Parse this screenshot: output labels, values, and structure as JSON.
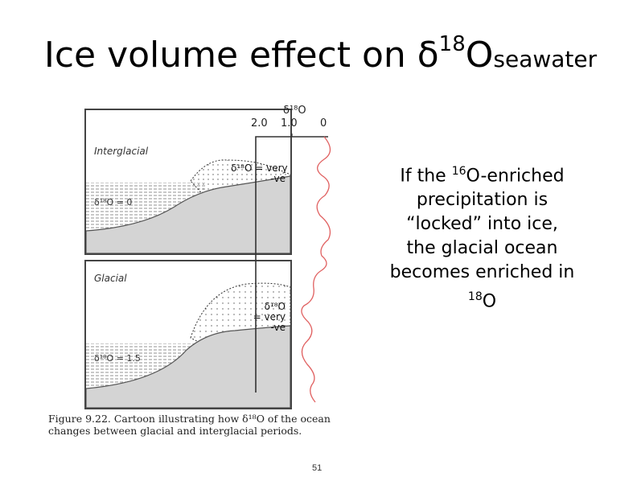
{
  "title": {
    "main": "Ice volume effect on δ",
    "sup": "18",
    "o": "O",
    "sub": "seawater"
  },
  "figure": {
    "interglacial": {
      "label": "Interglacial",
      "ice_callout": [
        "δ¹⁸O = very",
        "-ve"
      ],
      "ocean_label": "δ¹⁸O = 0"
    },
    "glacial": {
      "label": "Glacial",
      "ice_callout": [
        "δ¹⁸O",
        "= very",
        "-ve"
      ],
      "ocean_label": "δ¹⁸O = 1.5"
    },
    "axis": {
      "title": "δ¹⁸O",
      "ticks": [
        "2.0",
        "1.0",
        "0"
      ]
    },
    "caption": "Figure 9.22.  Cartoon illustrating how δ¹⁸O of the ocean changes between glacial and interglacial periods."
  },
  "right_text": {
    "line1_pre": "If the ",
    "line1_sup": "16",
    "line1_post": "O-enriched",
    "line2": "precipitation is",
    "line3": "“locked” into ice,",
    "line4": "the glacial ocean",
    "line5": "becomes enriched in",
    "line6_sup": "18",
    "line6_post": "O"
  },
  "page_number": "51",
  "colors": {
    "curve": "#e06060",
    "land": "#d4d4d4",
    "border": "#444444"
  }
}
